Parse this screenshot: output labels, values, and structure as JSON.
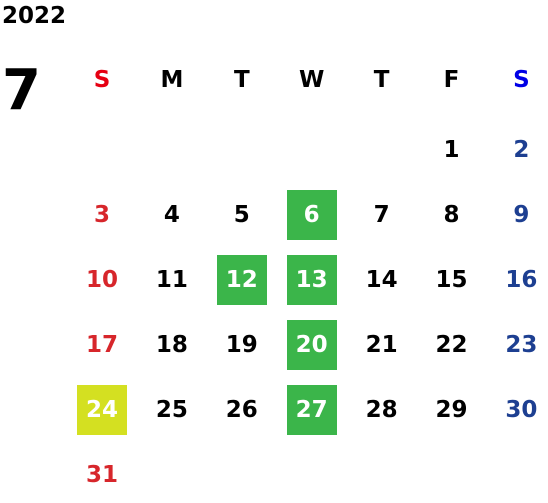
{
  "year": "2022",
  "month": "7",
  "weekdays": [
    "S",
    "M",
    "T",
    "W",
    "T",
    "F",
    "S"
  ],
  "weekday_colors": [
    "#e60012",
    "#000000",
    "#000000",
    "#000000",
    "#000000",
    "#000000",
    "#0000e6"
  ],
  "day_colors": [
    "#d7262b",
    "#000000",
    "#000000",
    "#000000",
    "#000000",
    "#000000",
    "#1d3f91"
  ],
  "weeks": [
    [
      null,
      null,
      null,
      null,
      null,
      1,
      2
    ],
    [
      3,
      4,
      5,
      {
        "label": 6,
        "fill": "#3bb54a"
      },
      7,
      8,
      9
    ],
    [
      10,
      11,
      {
        "label": 12,
        "fill": "#3bb54a"
      },
      {
        "label": 13,
        "fill": "#3bb54a"
      },
      14,
      15,
      16
    ],
    [
      17,
      18,
      19,
      {
        "label": 20,
        "fill": "#3bb54a"
      },
      21,
      22,
      23
    ],
    [
      {
        "label": 24,
        "fill": "#d4e021"
      },
      25,
      26,
      {
        "label": 27,
        "fill": "#3bb54a"
      },
      28,
      29,
      30
    ],
    [
      31,
      null,
      null,
      null,
      null,
      null,
      null
    ]
  ]
}
